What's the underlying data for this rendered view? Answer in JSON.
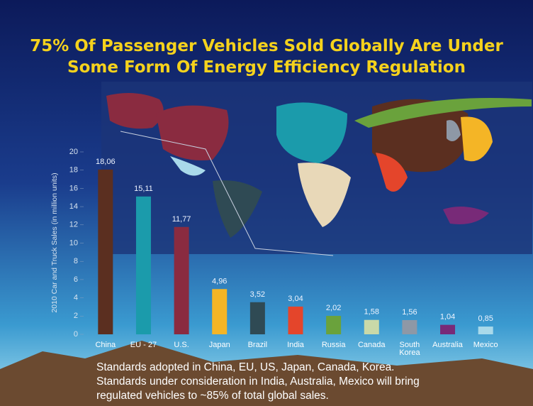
{
  "chart_data": {
    "type": "bar",
    "title_lines": [
      "75% Of Passenger Vehicles Sold Globally Are Under",
      "Some Form Of Energy Efficiency Regulation"
    ],
    "y_label": "2010 Car and Truck Sales (in million units)",
    "categories": [
      "China",
      "EU - 27",
      "U.S.",
      "Japan",
      "Brazil",
      "India",
      "Russia",
      "Canada",
      "South Korea",
      "Australia",
      "Mexico"
    ],
    "values": [
      18.06,
      15.11,
      11.77,
      4.96,
      3.52,
      3.04,
      2.02,
      1.58,
      1.56,
      1.04,
      0.85
    ],
    "value_labels": [
      "18,06",
      "15,11",
      "11,77",
      "4,96",
      "3,52",
      "3,04",
      "2,02",
      "1,58",
      "1,56",
      "1,04",
      "0,85"
    ],
    "colors": [
      "#5b2f20",
      "#1b9bab",
      "#8a2b40",
      "#f4b526",
      "#2f4a54",
      "#e4452b",
      "#6aa23c",
      "#c9d9a8",
      "#8e98a6",
      "#782a78",
      "#a9d9ea"
    ],
    "ylim": [
      0,
      20
    ],
    "yticks": [
      0,
      2,
      4,
      6,
      8,
      10,
      12,
      14,
      16,
      18,
      20
    ],
    "footnote_lines": [
      "Standards adopted in China, EU, US, Japan, Canada, Korea.",
      "Standards under consideration in India, Australia, Mexico will bring",
      "regulated vehicles to ~85% of total global sales."
    ]
  }
}
